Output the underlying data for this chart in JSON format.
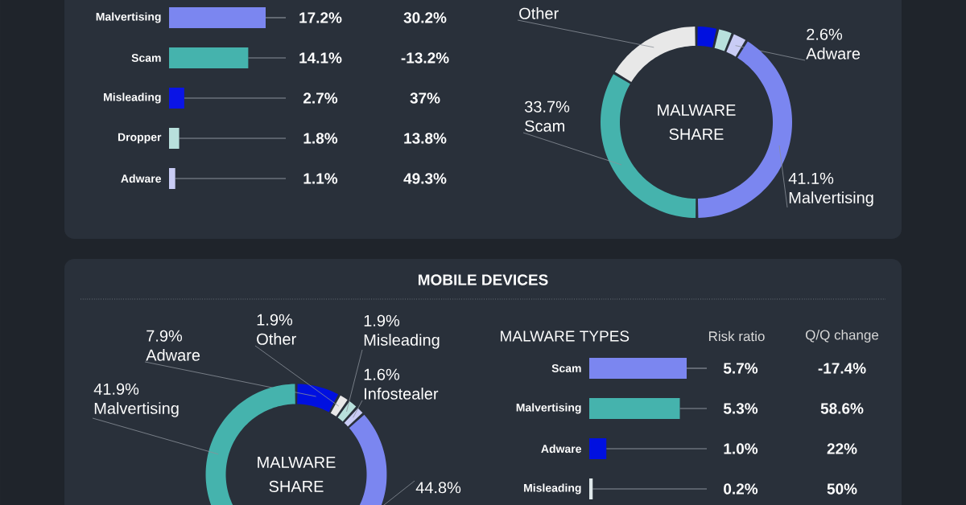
{
  "chart_data": [
    {
      "type": "bar",
      "orientation": "horizontal",
      "categories": [
        "Malvertising",
        "Scam",
        "Misleading",
        "Dropper",
        "Adware"
      ],
      "values": [
        17.2,
        14.1,
        2.7,
        1.8,
        1.1
      ],
      "colors": [
        "#7b86f0",
        "#45b3ad",
        "#0a14e6",
        "#b8e0dc",
        "#c9ccf5"
      ],
      "value_labels": [
        "17.2%",
        "14.1%",
        "2.7%",
        "1.8%",
        "1.1%"
      ],
      "annotations": [
        "30.2%",
        "-13.2%",
        "37%",
        "13.8%",
        "49.3%"
      ]
    },
    {
      "type": "donut",
      "categories": [
        null,
        null,
        "Adware",
        "Malvertising",
        "Scam",
        "Other"
      ],
      "values": [
        3.6,
        2.6,
        2.6,
        41.1,
        33.7,
        16.4
      ],
      "colors": [
        "#0010e0",
        "#b8e0dc",
        "#c9ccf5",
        "#7b86f0",
        "#45b3ad",
        "#e8e8e8"
      ],
      "value_labels": [
        null,
        null,
        "2.6%",
        "41.1%",
        "33.7%",
        null
      ],
      "annotations": [
        "MALWARE SHARE"
      ]
    },
    {
      "type": "donut",
      "title": "MOBILE DEVICES",
      "categories": [
        "Adware",
        "Other",
        "Misleading",
        "Infostealer",
        null,
        "Malvertising"
      ],
      "values": [
        7.9,
        1.9,
        1.9,
        1.6,
        44.8,
        41.9
      ],
      "colors": [
        "#0010e0",
        "#e8e8e8",
        "#b8e0dc",
        "#c9ccf5",
        "#7b86f0",
        "#45b3ad"
      ],
      "value_labels": [
        "7.9%",
        "1.9%",
        "1.9%",
        "1.6%",
        "44.8%",
        "41.9%"
      ],
      "annotations": [
        "MALWARE SHARE"
      ]
    },
    {
      "type": "bar",
      "orientation": "horizontal",
      "title": "MALWARE TYPES",
      "xlabel": "Risk ratio",
      "categories": [
        "Scam",
        "Malvertising",
        "Adware",
        "Misleading"
      ],
      "values": [
        5.7,
        5.3,
        1.0,
        0.2
      ],
      "colors": [
        "#7b86f0",
        "#45b3ad",
        "#0010e0",
        "#dfe8ea"
      ],
      "value_labels": [
        "5.7%",
        "5.3%",
        "1.0%",
        "0.2%"
      ],
      "annotations": [
        "Q/Q change",
        "-17.4%",
        "58.6%",
        "22%",
        "50%"
      ]
    }
  ]
}
